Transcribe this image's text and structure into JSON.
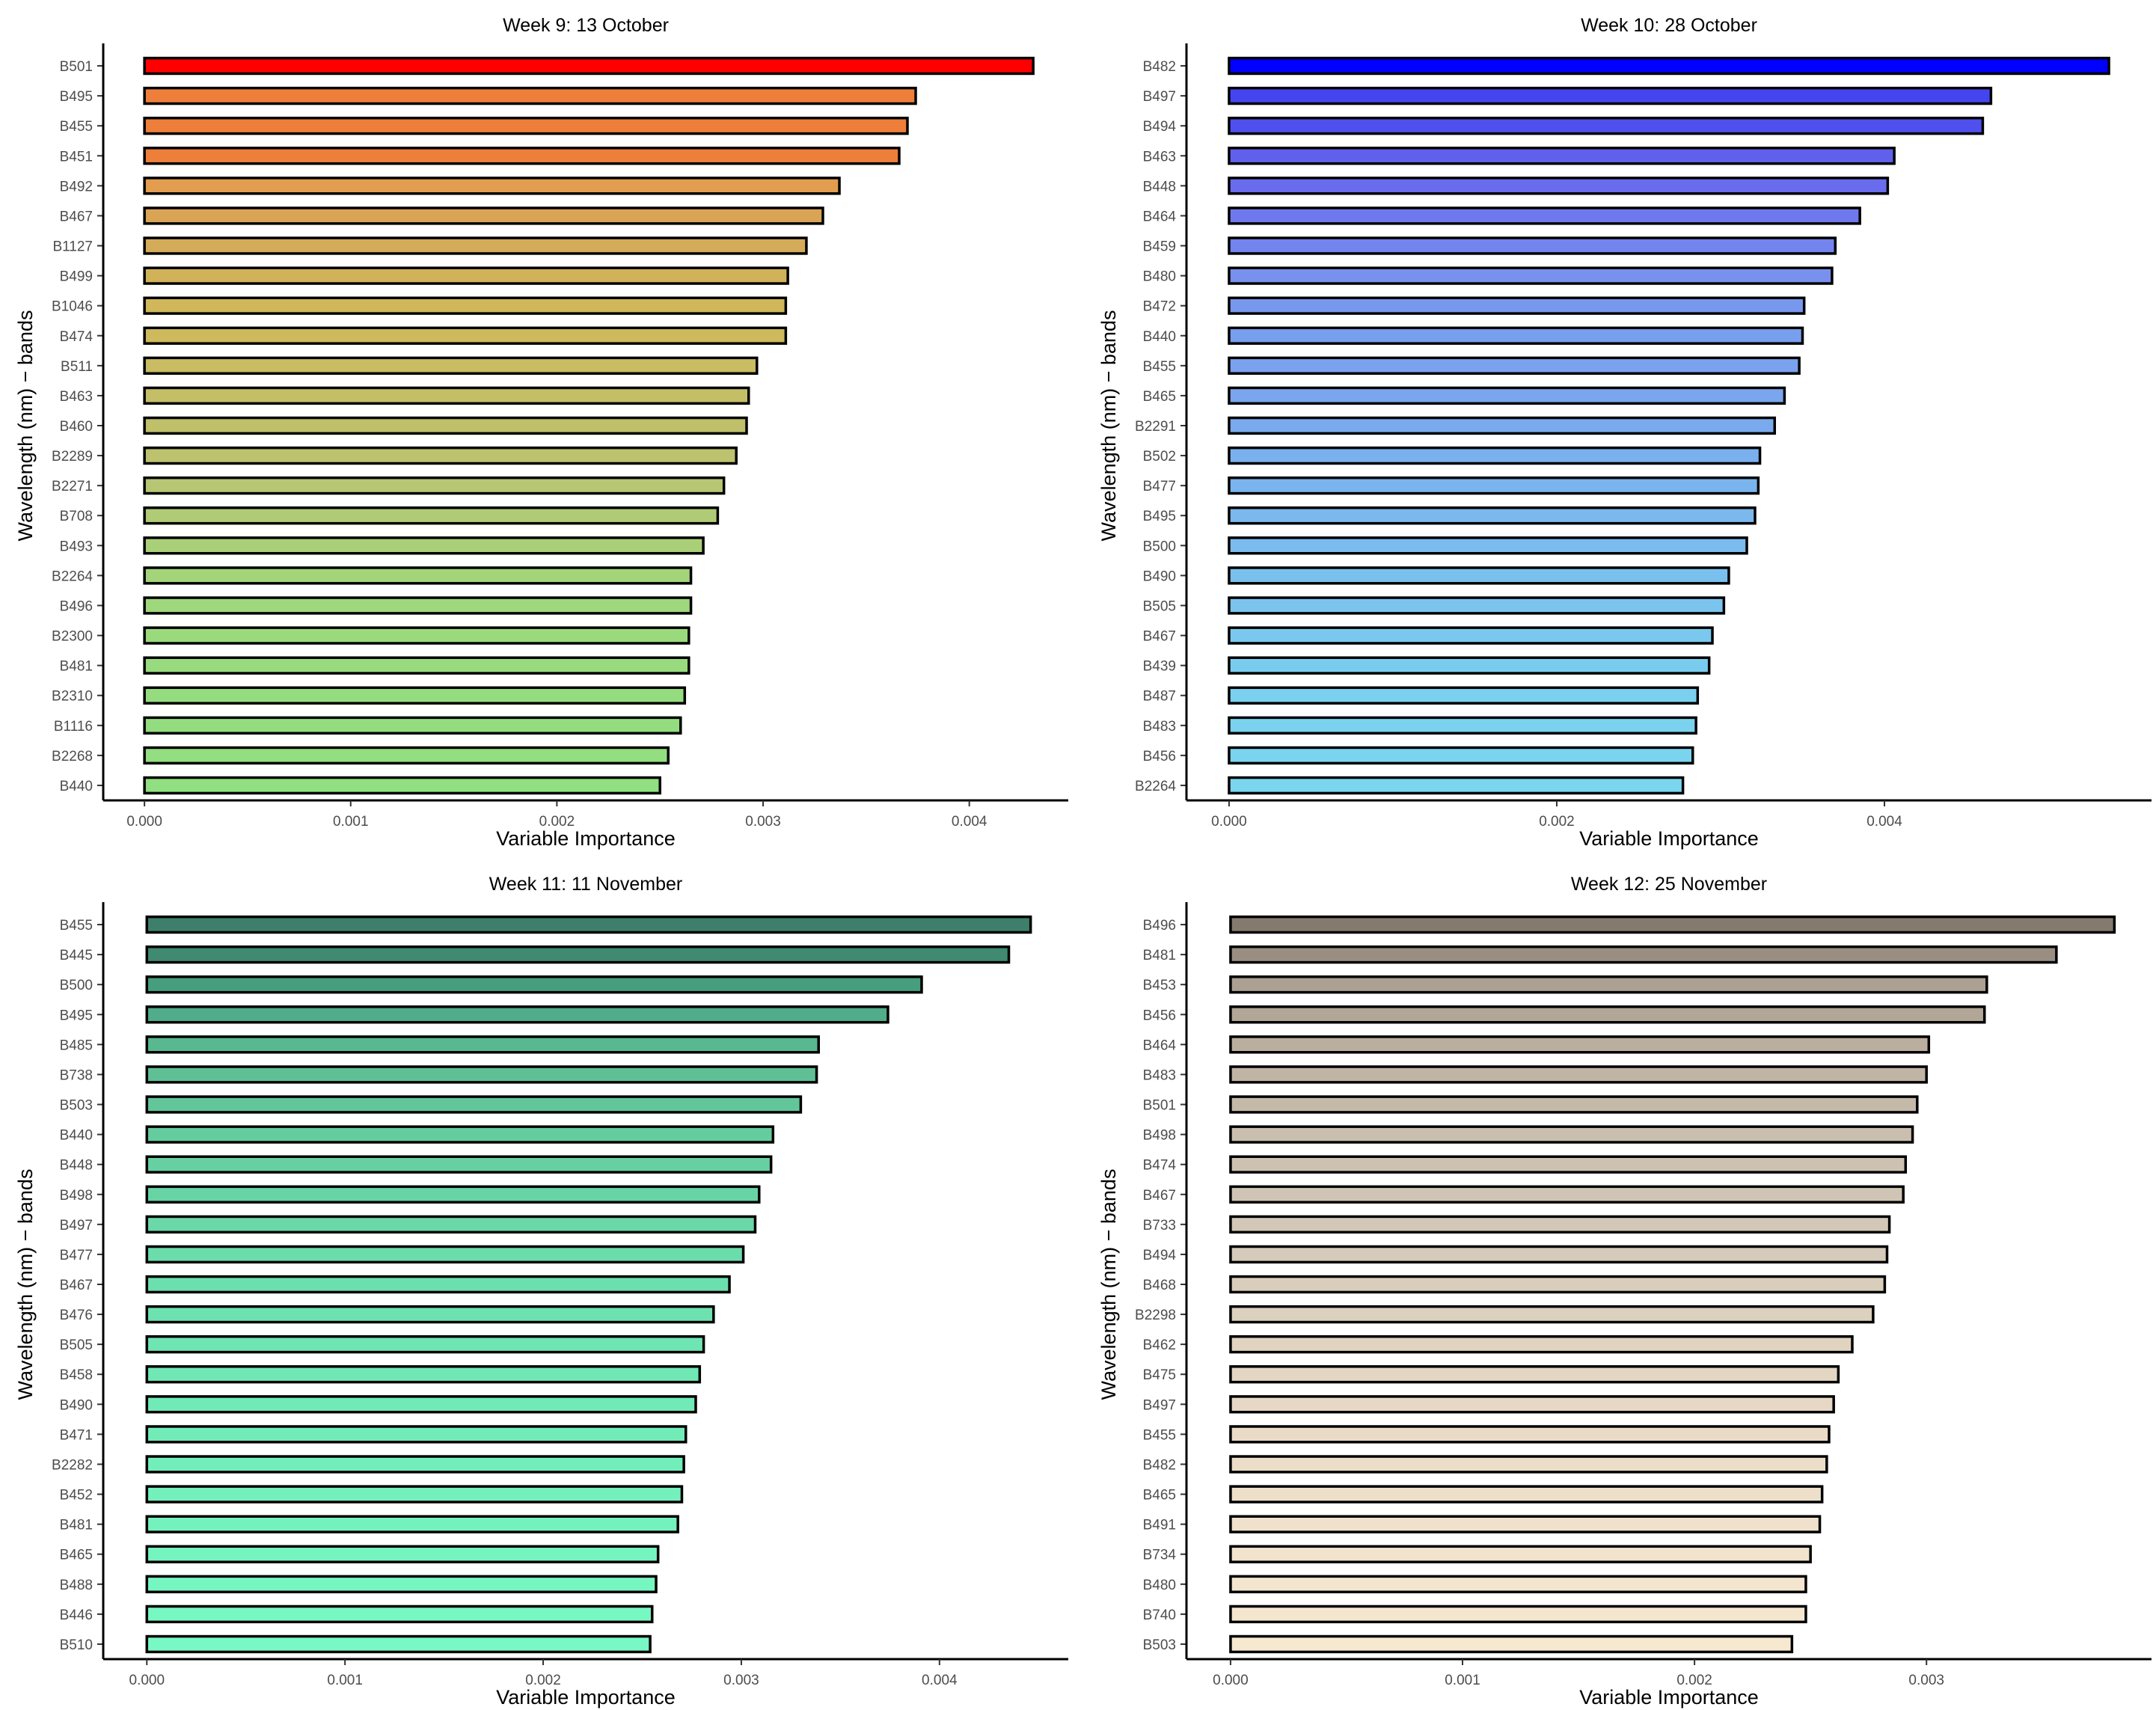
{
  "chart_data": [
    {
      "type": "bar",
      "orientation": "horizontal",
      "title": "Week 9: 13 October",
      "xlabel": "Variable Importance",
      "ylabel": "Wavelength (nm) − bands",
      "xlim": [
        -0.0002,
        0.00448
      ],
      "xticks": [
        0.0,
        0.001,
        0.002,
        0.003,
        0.004
      ],
      "xtick_labels": [
        "0.000",
        "0.001",
        "0.002",
        "0.003",
        "0.004"
      ],
      "grid": false,
      "categories": [
        "B501",
        "B495",
        "B455",
        "B451",
        "B492",
        "B467",
        "B1127",
        "B499",
        "B1046",
        "B474",
        "B511",
        "B463",
        "B460",
        "B2289",
        "B2271",
        "B708",
        "B493",
        "B2264",
        "B496",
        "B2300",
        "B481",
        "B2310",
        "B1116",
        "B2268",
        "B440"
      ],
      "values": [
        0.00431,
        0.00374,
        0.0037,
        0.00366,
        0.00337,
        0.00329,
        0.00321,
        0.00312,
        0.00311,
        0.00311,
        0.00297,
        0.00293,
        0.00292,
        0.00287,
        0.00281,
        0.00278,
        0.00271,
        0.00265,
        0.00265,
        0.00264,
        0.00264,
        0.00262,
        0.0026,
        0.00254,
        0.0025
      ],
      "colors": [
        "#FF0000",
        "#EE7F3A",
        "#EE7F3A",
        "#EE7F3A",
        "#E39D4E",
        "#D9A455",
        "#D4AB58",
        "#D2B259",
        "#D0B75A",
        "#CEBA5C",
        "#C9BC62",
        "#C4BE66",
        "#C0BF6A",
        "#BCC26E",
        "#B7C672",
        "#B0CB75",
        "#A9D078",
        "#A3D47A",
        "#9ED77C",
        "#9BD97D",
        "#98DB7E",
        "#95DC7F",
        "#93DD80",
        "#92DE80",
        "#90DF80"
      ]
    },
    {
      "type": "bar",
      "orientation": "horizontal",
      "title": "Week 10: 28 October",
      "xlabel": "Variable Importance",
      "ylabel": "Wavelength (nm) − bands",
      "xlim": [
        -0.00026,
        0.00563
      ],
      "xticks": [
        0.0,
        0.002,
        0.004
      ],
      "xtick_labels": [
        "0.000",
        "0.002",
        "0.004"
      ],
      "grid": false,
      "categories": [
        "B482",
        "B497",
        "B494",
        "B463",
        "B448",
        "B464",
        "B459",
        "B480",
        "B472",
        "B440",
        "B455",
        "B465",
        "B2291",
        "B502",
        "B477",
        "B495",
        "B500",
        "B490",
        "B505",
        "B467",
        "B439",
        "B487",
        "B483",
        "B456",
        "B2264"
      ],
      "values": [
        0.00537,
        0.00465,
        0.0046,
        0.00406,
        0.00402,
        0.00385,
        0.0037,
        0.00368,
        0.00351,
        0.0035,
        0.00348,
        0.00339,
        0.00333,
        0.00324,
        0.00323,
        0.00321,
        0.00316,
        0.00305,
        0.00302,
        0.00295,
        0.00293,
        0.00286,
        0.00285,
        0.00283,
        0.00277
      ],
      "colors": [
        "#0000FF",
        "#4545F0",
        "#5050EE",
        "#6060EC",
        "#6A6CEE",
        "#7078EE",
        "#7384EE",
        "#7890EE",
        "#7898EE",
        "#789EEE",
        "#7AA2EE",
        "#7AA6EE",
        "#7AAAEE",
        "#7AB0EE",
        "#7AB4EE",
        "#7AB8EE",
        "#7ABCEE",
        "#7AC0EE",
        "#7AC4EE",
        "#7AC8EE",
        "#7ACCEE",
        "#7AD0EE",
        "#7AD2EE",
        "#7AD4EE",
        "#7AD6EE"
      ]
    },
    {
      "type": "bar",
      "orientation": "horizontal",
      "title": "Week 11: 11 November",
      "xlabel": "Variable Importance",
      "ylabel": "Wavelength (nm) − bands",
      "xlim": [
        -0.00022,
        0.00465
      ],
      "xticks": [
        0.0,
        0.001,
        0.002,
        0.003,
        0.004
      ],
      "xtick_labels": [
        "0.000",
        "0.001",
        "0.002",
        "0.003",
        "0.004"
      ],
      "grid": false,
      "categories": [
        "B455",
        "B445",
        "B500",
        "B495",
        "B485",
        "B738",
        "B503",
        "B440",
        "B448",
        "B498",
        "B497",
        "B477",
        "B467",
        "B476",
        "B505",
        "B458",
        "B490",
        "B471",
        "B2282",
        "B452",
        "B481",
        "B465",
        "B488",
        "B446",
        "B510"
      ],
      "values": [
        0.00446,
        0.00435,
        0.00391,
        0.00374,
        0.00339,
        0.00338,
        0.0033,
        0.00316,
        0.00315,
        0.00309,
        0.00307,
        0.00301,
        0.00294,
        0.00286,
        0.00281,
        0.00279,
        0.00277,
        0.00272,
        0.00271,
        0.0027,
        0.00268,
        0.00258,
        0.00257,
        0.00255,
        0.00254
      ],
      "colors": [
        "#3D7F6A",
        "#3F8A70",
        "#479E7F",
        "#50AC8A",
        "#58B890",
        "#5FC096",
        "#62C69A",
        "#64CC9E",
        "#66D0A2",
        "#68D4A5",
        "#6AD8A8",
        "#6BDCAB",
        "#6CDFAE",
        "#6DE2B0",
        "#6EE5B3",
        "#6FE8B5",
        "#70EAB7",
        "#71ECB9",
        "#72EEBB",
        "#73F0BC",
        "#74F2BE",
        "#75F4C0",
        "#76F6C1",
        "#77F7C2",
        "#78F8C4"
      ]
    },
    {
      "type": "bar",
      "orientation": "horizontal",
      "title": "Week 12: 25 November",
      "xlabel": "Variable Importance",
      "ylabel": "Wavelength (nm) − bands",
      "xlim": [
        -0.00019,
        0.00397
      ],
      "xticks": [
        0.0,
        0.001,
        0.002,
        0.003
      ],
      "xtick_labels": [
        "0.000",
        "0.001",
        "0.002",
        "0.003"
      ],
      "grid": false,
      "categories": [
        "B496",
        "B481",
        "B453",
        "B456",
        "B464",
        "B483",
        "B501",
        "B498",
        "B474",
        "B467",
        "B733",
        "B494",
        "B468",
        "B2298",
        "B462",
        "B475",
        "B497",
        "B455",
        "B482",
        "B465",
        "B491",
        "B734",
        "B480",
        "B740",
        "B503"
      ],
      "values": [
        0.00381,
        0.00356,
        0.00326,
        0.00325,
        0.00301,
        0.003,
        0.00296,
        0.00294,
        0.00291,
        0.0029,
        0.00284,
        0.00283,
        0.00282,
        0.00277,
        0.00268,
        0.00262,
        0.0026,
        0.00258,
        0.00257,
        0.00255,
        0.00254,
        0.0025,
        0.00248,
        0.00248,
        0.00242
      ],
      "colors": [
        "#857A6E",
        "#9A8E82",
        "#ABA091",
        "#B2A697",
        "#BAAE9F",
        "#C0B4A4",
        "#C5B9A9",
        "#CABEAE",
        "#CDC2B2",
        "#D0C5B4",
        "#D3C8B7",
        "#D6CBBA",
        "#D9CEBC",
        "#DCD0BE",
        "#E0D3C0",
        "#E3D6C2",
        "#E6D8C4",
        "#E9DBC6",
        "#EBDDC8",
        "#EDDFCA",
        "#EFE1CB",
        "#F1E3CC",
        "#F3E5CE",
        "#F5E7CF",
        "#F7E9D0"
      ]
    }
  ]
}
